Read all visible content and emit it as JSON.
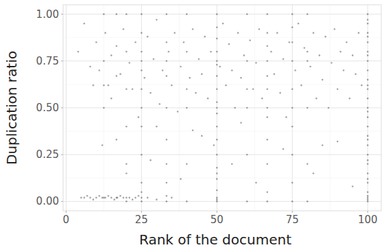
{
  "chart_data": {
    "type": "scatter",
    "x_label": "Rank of the document",
    "y_label": "Duplication ratio",
    "xlim": [
      -1,
      104.5
    ],
    "ylim": [
      -0.05,
      1.05
    ],
    "xticks": [
      0,
      25,
      50,
      75,
      100
    ],
    "yticks": [
      {
        "value": 0,
        "label": "0.00"
      },
      {
        "value": 0.25,
        "label": "0.25"
      },
      {
        "value": 0.5,
        "label": "0.50"
      },
      {
        "value": 0.75,
        "label": "0.75"
      },
      {
        "value": 1,
        "label": "1.00"
      }
    ],
    "grid": true,
    "color": "#000000",
    "marker": "circle",
    "x": [
      100,
      100,
      100,
      100,
      100,
      100,
      100,
      100,
      100,
      100,
      100,
      100,
      100,
      100,
      100,
      100,
      100,
      100,
      100,
      100,
      100,
      100,
      100,
      100,
      100,
      100,
      100,
      100,
      100,
      100,
      100,
      100,
      50,
      50,
      50,
      50,
      50,
      50,
      50,
      50,
      50,
      50,
      50,
      50,
      50,
      50,
      50,
      50,
      50,
      50,
      50,
      50,
      50,
      25,
      25,
      25,
      25,
      25,
      25,
      25,
      25,
      25,
      25,
      25,
      25,
      25,
      33.3,
      33.3,
      33.3,
      33.3,
      33.3,
      33.3,
      33.3,
      33.3,
      33.3,
      33.3,
      66.7,
      66.7,
      66.7,
      66.7,
      66.7,
      66.7,
      66.7,
      66.7,
      66.7,
      66.7,
      66.7,
      66.7,
      75,
      75,
      75,
      75,
      75,
      75,
      75,
      75,
      75,
      75,
      20,
      20,
      20,
      20,
      20,
      20,
      20,
      40,
      40,
      40,
      40,
      40,
      40,
      60,
      60,
      60,
      60,
      60,
      60,
      80,
      80,
      80,
      80,
      80,
      80,
      12.5,
      12.5,
      12.5,
      12.5,
      12.5,
      16.7,
      16.7,
      16.7,
      16.7,
      16.7,
      5,
      6,
      7,
      8,
      9,
      10,
      11,
      12,
      13,
      14,
      15,
      16,
      17,
      18,
      19,
      21,
      22,
      23,
      24,
      27,
      30,
      35,
      4,
      6,
      8,
      9,
      10,
      11,
      13,
      14,
      15,
      15,
      18,
      19,
      21,
      22,
      23,
      24,
      26,
      27,
      28,
      29,
      30,
      31,
      32,
      34,
      35,
      36,
      37,
      38,
      39,
      41,
      42,
      43,
      44,
      45,
      46,
      47,
      48,
      49,
      51,
      52,
      53,
      54,
      55,
      56,
      57,
      58,
      59,
      61,
      62,
      63,
      64,
      65,
      68,
      69,
      70,
      71,
      72,
      73,
      74,
      76,
      77,
      78,
      79,
      81,
      82,
      83,
      84,
      85,
      86,
      87,
      88,
      89,
      90,
      91,
      92,
      93,
      94,
      95,
      96,
      97,
      98,
      12,
      20,
      28,
      38,
      45,
      55,
      63,
      72,
      82,
      90,
      95,
      30,
      42,
      58,
      85
    ],
    "values": [
      0.0,
      0.02,
      0.05,
      0.1,
      0.15,
      0.2,
      0.25,
      0.3,
      0.35,
      0.4,
      0.45,
      0.5,
      0.55,
      0.6,
      0.65,
      0.7,
      0.75,
      0.8,
      0.85,
      0.9,
      0.95,
      1.0,
      0.01,
      0.03,
      0.12,
      0.22,
      0.33,
      0.48,
      0.62,
      0.78,
      0.88,
      0.97,
      0.0,
      0.02,
      0.06,
      0.12,
      0.18,
      0.25,
      0.33,
      0.4,
      0.47,
      0.53,
      0.6,
      0.67,
      0.73,
      0.8,
      0.87,
      0.93,
      1.0,
      0.01,
      0.15,
      0.5,
      0.75,
      0.0,
      0.02,
      0.1,
      0.25,
      0.4,
      0.5,
      0.6,
      0.7,
      0.8,
      0.9,
      1.0,
      0.05,
      0.75,
      0.0,
      0.03,
      0.2,
      0.33,
      0.5,
      0.67,
      0.75,
      0.85,
      1.0,
      0.1,
      0.0,
      0.05,
      0.2,
      0.33,
      0.45,
      0.5,
      0.6,
      0.67,
      0.75,
      0.83,
      0.9,
      1.0,
      0.0,
      0.1,
      0.25,
      0.4,
      0.5,
      0.6,
      0.75,
      0.85,
      0.93,
      1.0,
      0.0,
      0.02,
      0.2,
      0.4,
      0.6,
      0.8,
      1.0,
      0.0,
      0.2,
      0.5,
      0.6,
      0.8,
      1.0,
      0.0,
      0.25,
      0.5,
      0.6,
      0.75,
      1.0,
      0.0,
      0.2,
      0.5,
      0.75,
      0.8,
      1.0,
      0.02,
      0.5,
      0.62,
      0.75,
      1.0,
      0.02,
      0.33,
      0.67,
      0.83,
      1.0,
      0.02,
      0.02,
      0.03,
      0.02,
      0.01,
      0.02,
      0.03,
      0.02,
      0.02,
      0.03,
      0.02,
      0.01,
      0.02,
      0.03,
      0.02,
      0.02,
      0.01,
      0.02,
      0.03,
      0.02,
      0.01,
      0.02,
      0.8,
      0.95,
      0.72,
      0.62,
      0.85,
      0.7,
      0.9,
      0.62,
      0.78,
      0.55,
      0.68,
      0.92,
      0.74,
      0.6,
      0.85,
      0.45,
      0.66,
      0.88,
      0.58,
      0.76,
      0.97,
      0.52,
      0.7,
      0.8,
      0.62,
      0.9,
      0.48,
      0.72,
      0.85,
      0.66,
      0.92,
      0.58,
      0.76,
      0.68,
      0.88,
      0.55,
      0.8,
      0.3,
      0.72,
      0.95,
      0.62,
      0.84,
      0.7,
      0.5,
      0.9,
      0.66,
      0.78,
      0.86,
      0.6,
      0.74,
      0.92,
      0.55,
      0.8,
      0.68,
      0.9,
      0.58,
      0.76,
      0.45,
      0.85,
      0.7,
      0.95,
      0.62,
      0.82,
      0.72,
      0.9,
      0.55,
      0.78,
      0.65,
      0.88,
      0.5,
      0.74,
      0.92,
      0.6,
      0.8,
      0.7,
      0.85,
      0.55,
      0.78,
      0.68,
      0.9,
      0.62,
      0.3,
      0.15,
      0.22,
      0.12,
      0.35,
      0.2,
      0.1,
      0.28,
      0.15,
      0.32,
      0.08,
      0.4,
      0.38,
      0.42,
      0.3
    ]
  }
}
